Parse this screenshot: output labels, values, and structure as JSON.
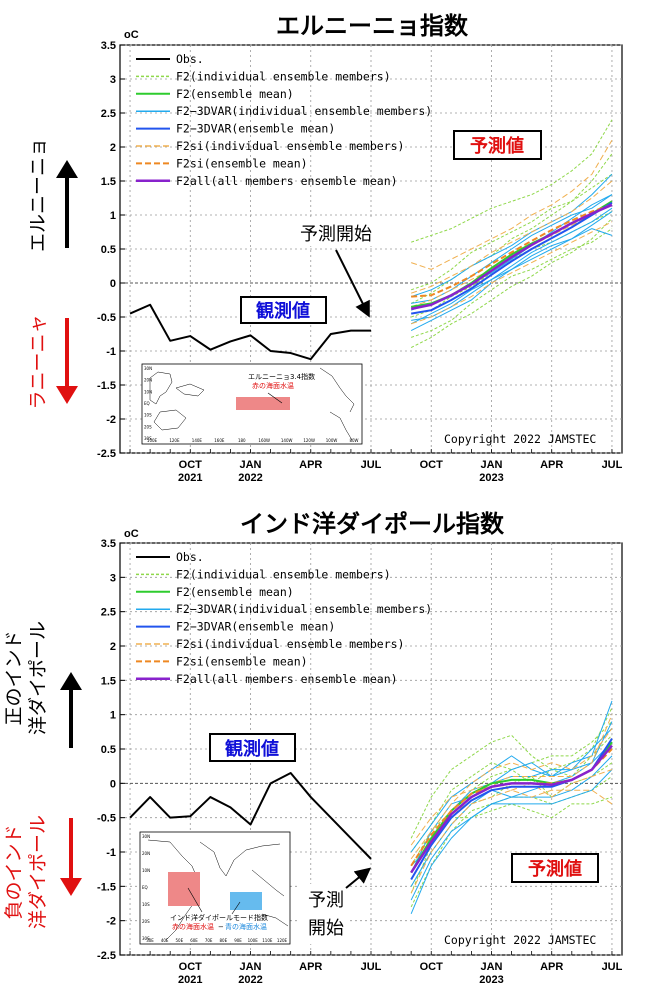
{
  "unit": "oC",
  "copyright": "Copyright 2022 JAMSTEC",
  "legend": [
    {
      "label": "Obs.",
      "color": "#000000",
      "dash": "",
      "width": 2
    },
    {
      "label": "F2(individual ensemble members)",
      "color": "#8fd84a",
      "dash": "3,2",
      "width": 1
    },
    {
      "label": "F2(ensemble mean)",
      "color": "#2ecc2e",
      "dash": "",
      "width": 2
    },
    {
      "label": "F2−3DVAR(individual ensemble members)",
      "color": "#22aaee",
      "dash": "",
      "width": 1
    },
    {
      "label": "F2−3DVAR(ensemble mean)",
      "color": "#2255ee",
      "dash": "",
      "width": 2
    },
    {
      "label": "F2si(individual ensemble members)",
      "color": "#f0b050",
      "dash": "6,3",
      "width": 1
    },
    {
      "label": "F2si(ensemble mean)",
      "color": "#ee8822",
      "dash": "6,3",
      "width": 2
    },
    {
      "label": "F2all(all members ensemble mean)",
      "color": "#8822cc",
      "dash": "",
      "width": 2.5
    }
  ],
  "x_ticks": [
    {
      "l1": "OCT",
      "l2": "2021",
      "m": 3
    },
    {
      "l1": "JAN",
      "l2": "2022",
      "m": 6
    },
    {
      "l1": "APR",
      "l2": "",
      "m": 9
    },
    {
      "l1": "JUL",
      "l2": "",
      "m": 12
    },
    {
      "l1": "OCT",
      "l2": "",
      "m": 15
    },
    {
      "l1": "JAN",
      "l2": "2023",
      "m": 18
    },
    {
      "l1": "APR",
      "l2": "",
      "m": 21
    },
    {
      "l1": "JUL",
      "l2": "",
      "m": 24
    }
  ],
  "charts": [
    {
      "title": "エルニーニョ指数",
      "side_up": "エルニーニョ",
      "side_down": "ラニーニャ",
      "obs_label": "観測値",
      "fc_label": "予測値",
      "start_label": [
        "予測開始"
      ],
      "map_title": "エルニーニョ3.4指数",
      "map_sub1": "赤の海面水温",
      "map_sub2": "",
      "map_lat": [
        "30N",
        "20N",
        "10N",
        "EQ",
        "10S",
        "20S",
        "30S"
      ],
      "map_lon": [
        "100E",
        "120E",
        "140E",
        "160E",
        "180",
        "160W",
        "140W",
        "120W",
        "100W",
        "80W"
      ],
      "chart_data": {
        "type": "line",
        "xlim": [
          "Jul 2021",
          "Jul 2023"
        ],
        "ylim": [
          -2.5,
          3.5
        ],
        "observed": {
          "x": [
            "Jul 2021",
            "Aug 2021",
            "Sep 2021",
            "Oct 2021",
            "Nov 2021",
            "Dec 2021",
            "Jan 2022",
            "Feb 2022",
            "Mar 2022",
            "Apr 2022",
            "May 2022",
            "Jun 2022",
            "Jul 2022"
          ],
          "y": [
            -0.45,
            -0.32,
            -0.85,
            -0.78,
            -0.98,
            -0.86,
            -0.77,
            -1.0,
            -1.03,
            -1.12,
            -0.75,
            -0.7,
            -0.7
          ]
        },
        "forecast_x": [
          "Sep 2022",
          "Oct 2022",
          "Nov 2022",
          "Dec 2022",
          "Jan 2023",
          "Feb 2023",
          "Mar 2023",
          "Apr 2023",
          "May 2023",
          "Jun 2023",
          "Jul 2023"
        ],
        "F2_mean": [
          -0.35,
          -0.3,
          -0.18,
          0.0,
          0.22,
          0.42,
          0.58,
          0.72,
          0.88,
          1.02,
          1.2
        ],
        "F2_3DVAR_mean": [
          -0.45,
          -0.4,
          -0.25,
          -0.08,
          0.12,
          0.32,
          0.5,
          0.66,
          0.82,
          1.0,
          1.18
        ],
        "F2si_mean": [
          -0.2,
          -0.18,
          -0.05,
          0.1,
          0.28,
          0.45,
          0.62,
          0.78,
          0.92,
          1.05,
          1.15
        ],
        "F2all_mean": [
          -0.38,
          -0.32,
          -0.18,
          -0.02,
          0.18,
          0.38,
          0.56,
          0.72,
          0.88,
          1.02,
          1.15
        ],
        "F2_members": [
          [
            0.6,
            0.7,
            0.8,
            0.95,
            1.1,
            1.2,
            1.3,
            1.45,
            1.65,
            1.9,
            2.4
          ],
          [
            -0.8,
            -0.7,
            -0.55,
            -0.3,
            -0.1,
            0.1,
            0.2,
            0.35,
            0.5,
            0.6,
            0.8
          ],
          [
            -0.1,
            0.0,
            0.2,
            0.45,
            0.6,
            0.75,
            0.9,
            1.1,
            1.2,
            1.4,
            1.6
          ],
          [
            -0.5,
            -0.4,
            -0.2,
            -0.05,
            0.15,
            0.35,
            0.5,
            0.6,
            0.75,
            0.9,
            1.05
          ],
          [
            -0.3,
            -0.15,
            0.05,
            0.25,
            0.4,
            0.65,
            0.8,
            1.0,
            1.2,
            1.5,
            1.9
          ],
          [
            -0.95,
            -0.8,
            -0.6,
            -0.45,
            -0.25,
            -0.05,
            0.1,
            0.3,
            0.45,
            0.65,
            0.95
          ]
        ],
        "F2_3DVAR_members": [
          [
            -0.7,
            -0.55,
            -0.4,
            -0.25,
            0.0,
            0.2,
            0.4,
            0.55,
            0.65,
            0.85,
            1.05
          ],
          [
            -0.2,
            -0.1,
            0.05,
            0.25,
            0.4,
            0.55,
            0.75,
            0.9,
            1.05,
            1.3,
            1.6
          ],
          [
            -0.55,
            -0.5,
            -0.35,
            -0.15,
            0.05,
            0.25,
            0.45,
            0.6,
            0.75,
            0.9,
            1.1
          ],
          [
            -0.4,
            -0.3,
            -0.2,
            0.0,
            0.15,
            0.35,
            0.55,
            0.75,
            0.95,
            1.15,
            1.3
          ],
          [
            -0.6,
            -0.45,
            -0.3,
            -0.1,
            0.05,
            0.2,
            0.35,
            0.5,
            0.65,
            0.8,
            0.7
          ],
          [
            -0.3,
            -0.25,
            -0.1,
            0.1,
            0.3,
            0.5,
            0.7,
            0.85,
            1.0,
            1.1,
            1.3
          ]
        ],
        "F2si_members": [
          [
            0.3,
            0.2,
            0.35,
            0.5,
            0.65,
            0.8,
            1.0,
            1.15,
            1.35,
            1.6,
            2.1
          ],
          [
            -0.6,
            -0.5,
            -0.35,
            -0.2,
            0.0,
            0.15,
            0.3,
            0.45,
            0.6,
            0.75,
            0.9
          ],
          [
            -0.15,
            -0.05,
            0.1,
            0.25,
            0.45,
            0.6,
            0.75,
            0.9,
            1.05,
            1.25,
            1.5
          ],
          [
            -0.35,
            -0.25,
            -0.1,
            0.05,
            0.2,
            0.4,
            0.55,
            0.7,
            0.85,
            1.0,
            1.2
          ]
        ]
      }
    },
    {
      "title": "インド洋ダイポール指数",
      "side_up": "正のインド洋ダイポール",
      "side_down": "負のインド洋ダイポール",
      "obs_label": "観測値",
      "fc_label": "予測値",
      "start_label": [
        "予測",
        "開始"
      ],
      "map_title": "インド洋ダイポールモード指数",
      "map_sub1": "赤の海面水温",
      "map_sub2": "青の海面水温",
      "map_lat": [
        "30N",
        "20N",
        "10N",
        "EQ",
        "10S",
        "20S",
        "30S"
      ],
      "map_lon": [
        "30E",
        "40E",
        "50E",
        "60E",
        "70E",
        "80E",
        "90E",
        "100E",
        "110E",
        "120E"
      ],
      "chart_data": {
        "type": "line",
        "xlim": [
          "Jul 2021",
          "Jul 2023"
        ],
        "ylim": [
          -2.5,
          3.5
        ],
        "observed": {
          "x": [
            "Jul 2021",
            "Aug 2021",
            "Sep 2021",
            "Oct 2021",
            "Nov 2021",
            "Dec 2021",
            "Jan 2022",
            "Feb 2022",
            "Mar 2022",
            "Apr 2022",
            "May 2022",
            "Jun 2022",
            "Jul 2022"
          ],
          "y": [
            -0.5,
            -0.2,
            -0.5,
            -0.48,
            -0.2,
            -0.35,
            -0.6,
            0.0,
            0.15,
            -0.2,
            -0.5,
            -0.8,
            -1.1
          ]
        },
        "forecast_x": [
          "Sep 2022",
          "Oct 2022",
          "Nov 2022",
          "Dec 2022",
          "Jan 2023",
          "Feb 2023",
          "Mar 2023",
          "Apr 2023",
          "May 2023",
          "Jun 2023",
          "Jul 2023"
        ],
        "F2_mean": [
          -1.3,
          -0.8,
          -0.4,
          -0.15,
          0.0,
          0.05,
          0.05,
          0.0,
          0.05,
          0.2,
          0.6
        ],
        "F2_3DVAR_mean": [
          -1.4,
          -0.9,
          -0.5,
          -0.25,
          -0.1,
          -0.05,
          -0.05,
          -0.05,
          0.05,
          0.2,
          0.65
        ],
        "F2si_mean": [
          -1.2,
          -0.75,
          -0.4,
          -0.15,
          -0.05,
          0.0,
          0.0,
          0.0,
          0.05,
          0.2,
          0.5
        ],
        "F2all_mean": [
          -1.3,
          -0.85,
          -0.45,
          -0.2,
          -0.05,
          0.0,
          0.0,
          -0.02,
          0.05,
          0.2,
          0.55
        ],
        "F2_members": [
          [
            -0.8,
            -0.2,
            0.2,
            0.4,
            0.6,
            0.7,
            0.4,
            0.2,
            0.3,
            0.5,
            1.1
          ],
          [
            -1.8,
            -1.2,
            -0.7,
            -0.4,
            -0.3,
            -0.2,
            -0.2,
            -0.3,
            -0.2,
            -0.1,
            0.1
          ],
          [
            -1.0,
            -0.6,
            -0.1,
            0.1,
            0.3,
            0.2,
            0.3,
            0.4,
            0.4,
            0.6,
            0.9
          ],
          [
            -1.5,
            -1.0,
            -0.6,
            -0.3,
            -0.2,
            0.0,
            0.1,
            -0.2,
            0.0,
            0.1,
            0.3
          ],
          [
            -1.2,
            -0.7,
            -0.4,
            -0.1,
            0.1,
            0.2,
            0.0,
            0.2,
            0.1,
            0.4,
            0.7
          ],
          [
            -1.6,
            -0.9,
            -0.5,
            -0.5,
            -0.4,
            -0.3,
            -0.4,
            -0.5,
            -0.3,
            -0.3,
            -0.2
          ]
        ],
        "F2_3DVAR_members": [
          [
            -1.9,
            -1.2,
            -0.8,
            -0.5,
            -0.3,
            -0.2,
            -0.1,
            0.0,
            0.1,
            0.3,
            0.9
          ],
          [
            -1.0,
            -0.6,
            -0.2,
            0.0,
            0.2,
            0.4,
            0.2,
            0.1,
            0.3,
            0.4,
            1.2
          ],
          [
            -1.5,
            -1.0,
            -0.6,
            -0.3,
            -0.1,
            -0.2,
            -0.2,
            -0.2,
            -0.1,
            0.1,
            0.4
          ],
          [
            -1.2,
            -0.9,
            -0.4,
            -0.1,
            0.0,
            0.1,
            0.1,
            0.2,
            0.2,
            0.5,
            0.8
          ],
          [
            -1.7,
            -1.1,
            -0.7,
            -0.5,
            -0.3,
            -0.3,
            -0.3,
            -0.3,
            -0.2,
            -0.1,
            0.2
          ],
          [
            -1.3,
            -0.7,
            -0.3,
            -0.2,
            0.0,
            0.2,
            0.3,
            0.1,
            0.2,
            0.3,
            0.6
          ]
        ],
        "F2si_members": [
          [
            -1.1,
            -0.7,
            -0.3,
            0.0,
            0.2,
            0.3,
            0.2,
            0.3,
            0.2,
            0.4,
            0.8
          ],
          [
            -1.6,
            -1.0,
            -0.6,
            -0.3,
            -0.2,
            -0.1,
            -0.2,
            -0.1,
            -0.1,
            -0.1,
            -0.3
          ],
          [
            -1.3,
            -0.8,
            -0.5,
            -0.2,
            0.0,
            0.1,
            0.1,
            0.1,
            0.1,
            0.3,
            1.0
          ],
          [
            -0.9,
            -0.5,
            -0.2,
            -0.1,
            0.0,
            -0.1,
            0.0,
            -0.2,
            0.0,
            0.1,
            0.2
          ]
        ]
      }
    }
  ]
}
